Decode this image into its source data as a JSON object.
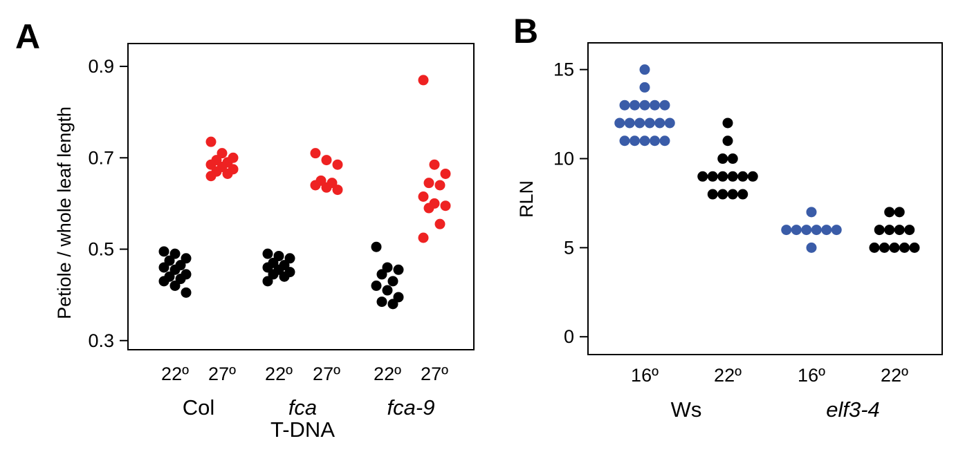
{
  "chart_data": [
    {
      "panel": "A",
      "type": "scatter",
      "ylabel": "Petiole / whole leaf length",
      "ylim": [
        0.28,
        0.95
      ],
      "yticks": [
        0.3,
        0.5,
        0.7,
        0.9
      ],
      "ytick_labels": [
        "0.3",
        "0.5",
        "0.7",
        "0.9"
      ],
      "categories": [
        "22º",
        "27º",
        "22º",
        "27º",
        "22º",
        "27º"
      ],
      "groups": [
        {
          "lines": [
            "Col"
          ],
          "italic": [
            false
          ],
          "cats": [
            0,
            1
          ]
        },
        {
          "lines": [
            "fca",
            "T-DNA"
          ],
          "italic": [
            true,
            false
          ],
          "cats": [
            2,
            3
          ]
        },
        {
          "lines": [
            "fca-9"
          ],
          "italic": [
            true
          ],
          "cats": [
            4,
            5
          ]
        }
      ],
      "series": [
        {
          "category": "22º",
          "color": "#000000",
          "points": [
            0.495,
            0.49,
            0.48,
            0.475,
            0.465,
            0.46,
            0.455,
            0.445,
            0.44,
            0.435,
            0.43,
            0.42,
            0.405
          ]
        },
        {
          "category": "27º",
          "color": "#ee2222",
          "points": [
            0.735,
            0.71,
            0.7,
            0.695,
            0.69,
            0.685,
            0.68,
            0.675,
            0.67,
            0.665,
            0.66
          ]
        },
        {
          "category": "22º",
          "color": "#000000",
          "points": [
            0.49,
            0.485,
            0.48,
            0.47,
            0.465,
            0.46,
            0.455,
            0.45,
            0.445,
            0.44,
            0.43
          ]
        },
        {
          "category": "27º",
          "color": "#ee2222",
          "points": [
            0.71,
            0.695,
            0.685,
            0.65,
            0.645,
            0.64,
            0.635,
            0.63
          ]
        },
        {
          "category": "22º",
          "color": "#000000",
          "points": [
            0.505,
            0.46,
            0.455,
            0.445,
            0.43,
            0.42,
            0.41,
            0.395,
            0.385,
            0.38
          ]
        },
        {
          "category": "27º",
          "color": "#ee2222",
          "points": [
            0.87,
            0.685,
            0.665,
            0.645,
            0.64,
            0.615,
            0.6,
            0.595,
            0.59,
            0.555,
            0.525
          ]
        }
      ]
    },
    {
      "panel": "B",
      "type": "scatter",
      "ylabel": "RLN",
      "ylim": [
        -1,
        16.5
      ],
      "yticks": [
        0,
        5,
        10,
        15
      ],
      "ytick_labels": [
        "0",
        "5",
        "10",
        "15"
      ],
      "categories": [
        "16º",
        "22º",
        "16º",
        "22º"
      ],
      "groups": [
        {
          "lines": [
            "Ws"
          ],
          "italic": [
            false
          ],
          "cats": [
            0,
            1
          ]
        },
        {
          "lines": [
            "elf3-4"
          ],
          "italic": [
            true
          ],
          "cats": [
            2,
            3
          ]
        }
      ],
      "series": [
        {
          "category": "16º",
          "color": "#3a5ca8",
          "counts": [
            [
              11,
              5
            ],
            [
              12,
              6
            ],
            [
              13,
              5
            ],
            [
              14,
              1
            ],
            [
              15,
              1
            ]
          ]
        },
        {
          "category": "22º",
          "color": "#000000",
          "counts": [
            [
              8,
              4
            ],
            [
              9,
              6
            ],
            [
              10,
              2
            ],
            [
              11,
              1
            ],
            [
              12,
              1
            ]
          ]
        },
        {
          "category": "16º",
          "color": "#3a5ca8",
          "counts": [
            [
              5,
              1
            ],
            [
              6,
              6
            ],
            [
              7,
              1
            ]
          ]
        },
        {
          "category": "22º",
          "color": "#000000",
          "counts": [
            [
              5,
              5
            ],
            [
              6,
              4
            ],
            [
              7,
              2
            ]
          ]
        }
      ]
    }
  ]
}
